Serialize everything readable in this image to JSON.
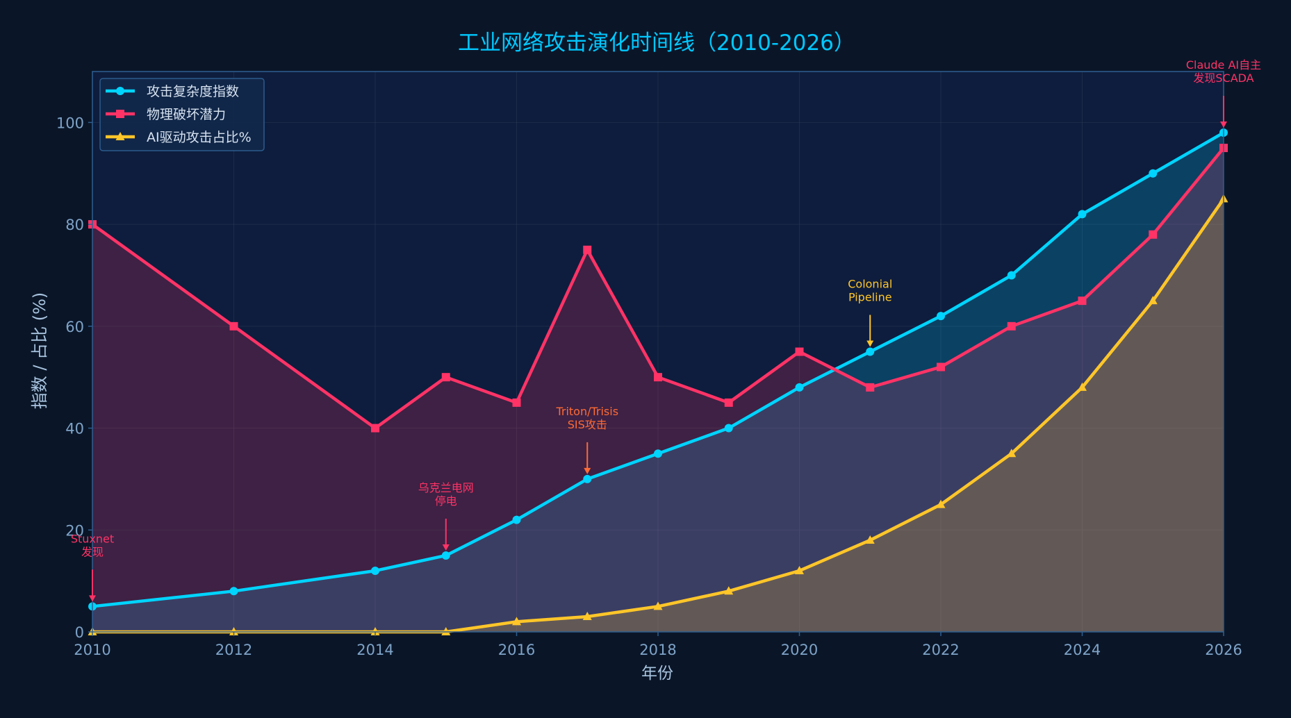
{
  "chart_data": {
    "type": "area",
    "title": "工业网络攻击演化时间线（2010-2026）",
    "xlabel": "年份",
    "ylabel": "指数 / 占比 (%)",
    "xlim": [
      2010,
      2026
    ],
    "ylim": [
      0,
      110
    ],
    "x_ticks": [
      "2010",
      "2012",
      "2014",
      "2016",
      "2018",
      "2020",
      "2022",
      "2024",
      "2026"
    ],
    "y_ticks": [
      "0",
      "20",
      "40",
      "60",
      "80",
      "100"
    ],
    "grid": true,
    "legend_position": "top-left",
    "series": [
      {
        "name": "攻击复杂度指数",
        "color": "#00d4ff",
        "marker": "circle",
        "x": [
          2010,
          2012,
          2014,
          2015,
          2016,
          2017,
          2018,
          2019,
          2020,
          2021,
          2022,
          2023,
          2024,
          2025,
          2026
        ],
        "values": [
          5,
          8,
          12,
          15,
          22,
          30,
          35,
          40,
          48,
          55,
          62,
          70,
          82,
          90,
          98
        ]
      },
      {
        "name": "物理破坏潜力",
        "color": "#ff3366",
        "marker": "square",
        "x": [
          2010,
          2012,
          2014,
          2015,
          2016,
          2017,
          2018,
          2019,
          2020,
          2021,
          2022,
          2023,
          2024,
          2025,
          2026
        ],
        "values": [
          80,
          60,
          40,
          50,
          45,
          75,
          50,
          45,
          55,
          48,
          52,
          60,
          65,
          78,
          95
        ]
      },
      {
        "name": "AI驱动攻击占比%",
        "color": "#ffc629",
        "marker": "triangle",
        "x": [
          2010,
          2012,
          2014,
          2015,
          2016,
          2017,
          2018,
          2019,
          2020,
          2021,
          2022,
          2023,
          2024,
          2025,
          2026
        ],
        "values": [
          0,
          0,
          0,
          0,
          2,
          3,
          5,
          8,
          12,
          18,
          25,
          35,
          48,
          65,
          85
        ]
      }
    ],
    "annotations": [
      {
        "lines": [
          "Stuxnet",
          "发现"
        ],
        "x": 2010,
        "y": 5,
        "text_y": 17,
        "color": "#ff3366"
      },
      {
        "lines": [
          "乌克兰电网",
          "停电"
        ],
        "x": 2015,
        "y": 15,
        "text_y": 27,
        "color": "#ff3366"
      },
      {
        "lines": [
          "Triton/Trisis",
          "SIS攻击"
        ],
        "x": 2017,
        "y": 30,
        "text_y": 42,
        "color": "#ff6b35"
      },
      {
        "lines": [
          "Colonial",
          "Pipeline"
        ],
        "x": 2021,
        "y": 55,
        "text_y": 67,
        "color": "#ffc629"
      },
      {
        "lines": [
          "Claude AI自主",
          "发现SCADA"
        ],
        "x": 2026,
        "y": 98,
        "text_y": 110,
        "color": "#ff3366"
      }
    ],
    "colors": {
      "background": "#0a1628",
      "plot_background": "#0e1d3d",
      "grid": "#2a3a55",
      "axis": "#2e5f91",
      "tick_label": "#7fa3c8",
      "axis_label": "#a9c4e0",
      "title": "#00c8ff",
      "legend_text": "#d6e2f0"
    }
  }
}
